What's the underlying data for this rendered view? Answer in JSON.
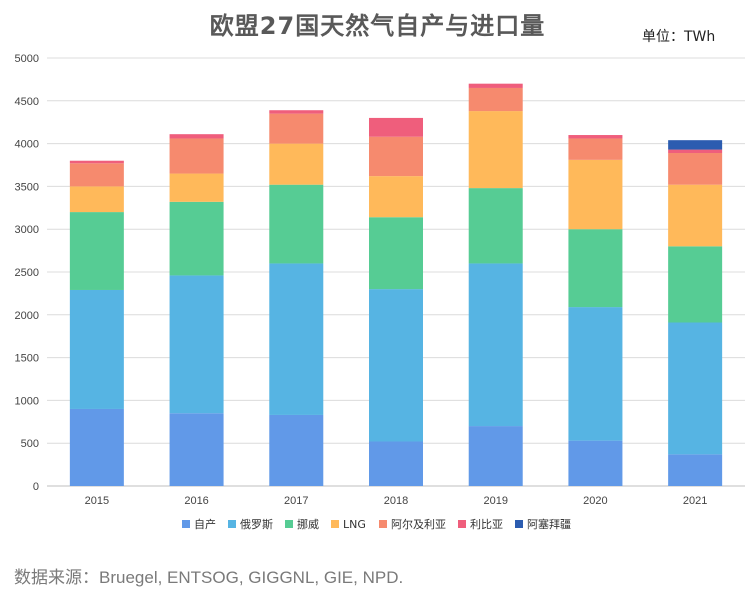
{
  "title": "欧盟27国天然气自产与进口量",
  "unit": "单位：TWh",
  "source": "数据来源：Bruegel, ENTSOG, GIGGNL, GIE, NPD.",
  "chart_data": {
    "type": "bar",
    "stacked": true,
    "categories": [
      "2015",
      "2016",
      "2017",
      "2018",
      "2019",
      "2020",
      "2021"
    ],
    "ylim": [
      0,
      5000
    ],
    "yticks": [
      0,
      500,
      1000,
      1500,
      2000,
      2500,
      3000,
      3500,
      4000,
      4500,
      5000
    ],
    "grid": true,
    "legend_position": "bottom",
    "series": [
      {
        "name": "自产",
        "color": "#6199e8",
        "values": [
          900,
          850,
          830,
          520,
          700,
          530,
          370
        ]
      },
      {
        "name": "俄罗斯",
        "color": "#56b4e3",
        "values": [
          1390,
          1610,
          1770,
          1780,
          1900,
          1560,
          1540
        ]
      },
      {
        "name": "挪威",
        "color": "#56cc94",
        "values": [
          910,
          860,
          920,
          840,
          880,
          910,
          890
        ]
      },
      {
        "name": "LNG",
        "color": "#ffb95a",
        "values": [
          300,
          330,
          480,
          480,
          900,
          810,
          720
        ]
      },
      {
        "name": "阿尔及利亚",
        "color": "#f68a6e",
        "values": [
          270,
          410,
          350,
          460,
          270,
          250,
          370
        ]
      },
      {
        "name": "利比亚",
        "color": "#ef5e7c",
        "values": [
          30,
          50,
          40,
          220,
          50,
          40,
          40
        ]
      },
      {
        "name": "阿塞拜疆",
        "color": "#2b5cb0",
        "values": [
          0,
          0,
          0,
          0,
          0,
          0,
          110
        ]
      }
    ]
  }
}
